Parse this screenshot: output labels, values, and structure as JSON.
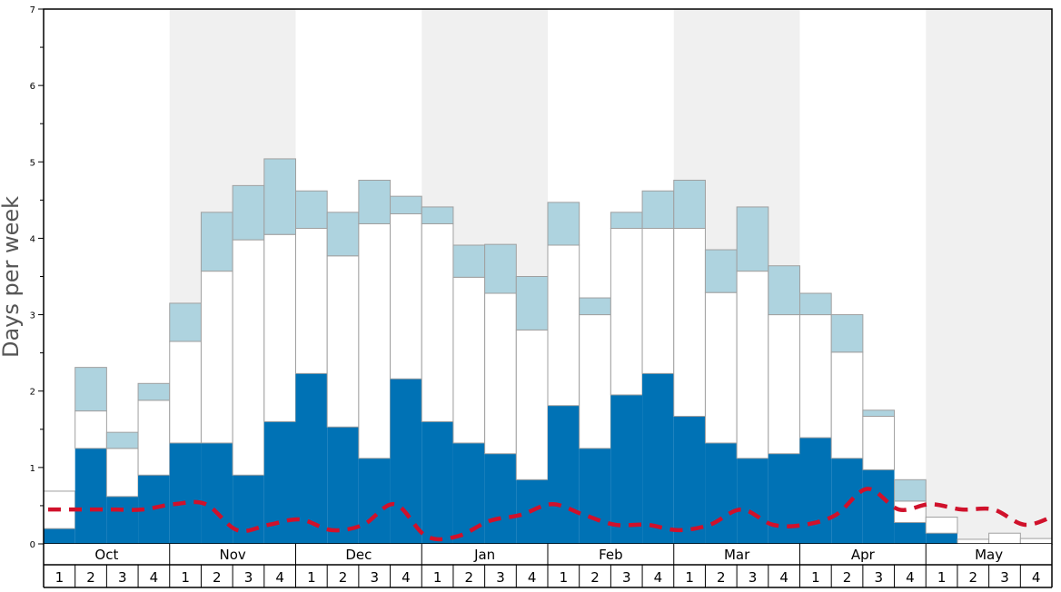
{
  "chart_data": {
    "type": "bar",
    "stacked": true,
    "ylabel": "Days per week",
    "ylim": [
      0,
      7
    ],
    "yticks": [
      "0",
      "1",
      "2",
      "3",
      "4",
      "5",
      "6",
      "7"
    ],
    "months": [
      "Oct",
      "Nov",
      "Dec",
      "Jan",
      "Feb",
      "Mar",
      "Apr",
      "May"
    ],
    "weeks": [
      "1",
      "2",
      "3",
      "4"
    ],
    "shaded_months": [
      "Nov",
      "Jan",
      "Mar",
      "May"
    ],
    "colors": {
      "dark": "#0072b5",
      "mid": "#ffffff",
      "light": "#aed3df",
      "line": "#d0112b",
      "shade": "#f0f0f0",
      "bar_border": "#a0a0a0"
    },
    "series": [
      {
        "values": [
          0.2,
          1.25,
          0.62,
          0.9,
          1.32,
          1.32,
          0.9,
          1.6,
          2.23,
          1.53,
          1.12,
          2.16,
          1.6,
          1.32,
          1.18,
          0.84,
          1.81,
          1.25,
          1.95,
          2.23,
          1.67,
          1.32,
          1.12,
          1.18,
          1.39,
          1.12,
          0.97,
          0.28,
          0.14,
          0.0,
          0.0,
          0.0
        ]
      },
      {
        "values": [
          0.49,
          0.49,
          0.63,
          0.98,
          1.33,
          2.25,
          3.08,
          2.45,
          1.9,
          2.24,
          3.07,
          2.16,
          2.59,
          2.17,
          2.1,
          1.96,
          2.1,
          1.75,
          2.18,
          1.9,
          2.46,
          1.97,
          2.45,
          1.82,
          1.61,
          1.39,
          0.7,
          0.28,
          0.21,
          0.06,
          0.14,
          0.07
        ]
      },
      {
        "values": [
          0.0,
          0.57,
          0.21,
          0.22,
          0.5,
          0.77,
          0.71,
          0.99,
          0.49,
          0.57,
          0.57,
          0.23,
          0.22,
          0.42,
          0.64,
          0.7,
          0.56,
          0.22,
          0.21,
          0.49,
          0.63,
          0.56,
          0.84,
          0.64,
          0.28,
          0.49,
          0.08,
          0.28,
          0.0,
          0.0,
          0.0,
          0.0
        ]
      }
    ],
    "line": {
      "values": [
        0.45,
        0.45,
        0.45,
        0.45,
        0.52,
        0.52,
        0.18,
        0.25,
        0.32,
        0.18,
        0.25,
        0.52,
        0.1,
        0.1,
        0.3,
        0.38,
        0.52,
        0.38,
        0.25,
        0.25,
        0.18,
        0.25,
        0.45,
        0.25,
        0.25,
        0.38,
        0.72,
        0.45,
        0.52,
        0.45,
        0.45,
        0.25,
        0.38
      ]
    }
  }
}
